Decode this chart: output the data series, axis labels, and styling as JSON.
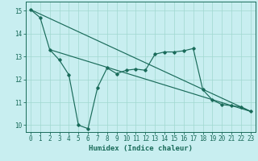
{
  "xlabel": "Humidex (Indice chaleur)",
  "bg_color": "#c8eef0",
  "line_color": "#1a6b5a",
  "grid_color": "#a0d8d0",
  "xlim": [
    -0.5,
    23.5
  ],
  "ylim": [
    9.7,
    15.4
  ],
  "xticks": [
    0,
    1,
    2,
    3,
    4,
    5,
    6,
    7,
    8,
    9,
    10,
    11,
    12,
    13,
    14,
    15,
    16,
    17,
    18,
    19,
    20,
    21,
    22,
    23
  ],
  "yticks": [
    10,
    11,
    12,
    13,
    14,
    15
  ],
  "line1_x": [
    0,
    1,
    2,
    3,
    4,
    5,
    6,
    7,
    8,
    9,
    10,
    11,
    12,
    13,
    14,
    15,
    16,
    17,
    18,
    19,
    20,
    21,
    22,
    23
  ],
  "line1_y": [
    15.05,
    14.7,
    13.3,
    12.85,
    12.2,
    10.0,
    9.85,
    11.65,
    12.5,
    12.25,
    12.4,
    12.45,
    12.4,
    13.1,
    13.2,
    13.2,
    13.25,
    13.35,
    11.55,
    11.1,
    10.9,
    10.85,
    10.8,
    10.6
  ],
  "line2_x": [
    0,
    23
  ],
  "line2_y": [
    15.05,
    10.6
  ],
  "line3_x": [
    2,
    23
  ],
  "line3_y": [
    13.3,
    10.6
  ]
}
